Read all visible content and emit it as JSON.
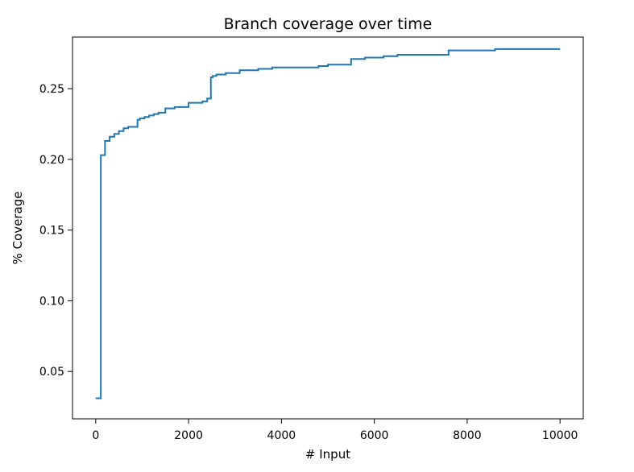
{
  "chart_data": {
    "type": "line",
    "step": true,
    "title": "Branch coverage over time",
    "xlabel": "# Input",
    "ylabel": "% Coverage",
    "xlim": [
      -500,
      10500
    ],
    "ylim": [
      0.0165,
      0.2865
    ],
    "xticks": [
      0,
      2000,
      4000,
      6000,
      8000,
      10000
    ],
    "yticks": [
      0.05,
      0.1,
      0.15,
      0.2,
      0.25
    ],
    "ytick_labels": [
      "0.05",
      "0.10",
      "0.15",
      "0.20",
      "0.25"
    ],
    "grid": false,
    "series": [
      {
        "color": "#1f77b4",
        "x": [
          0,
          100,
          110,
          200,
          300,
          400,
          500,
          600,
          700,
          900,
          950,
          1050,
          1150,
          1250,
          1350,
          1500,
          1700,
          2000,
          2300,
          2400,
          2480,
          2520,
          2600,
          2800,
          3100,
          3500,
          3800,
          4200,
          4800,
          5000,
          5500,
          5800,
          6200,
          6500,
          7000,
          7600,
          8600,
          9000,
          10000
        ],
        "y": [
          0.031,
          0.031,
          0.203,
          0.213,
          0.216,
          0.218,
          0.22,
          0.222,
          0.223,
          0.228,
          0.229,
          0.23,
          0.231,
          0.232,
          0.233,
          0.236,
          0.237,
          0.24,
          0.241,
          0.243,
          0.258,
          0.259,
          0.26,
          0.261,
          0.263,
          0.264,
          0.265,
          0.265,
          0.266,
          0.267,
          0.271,
          0.272,
          0.273,
          0.274,
          0.274,
          0.277,
          0.278,
          0.278,
          0.278
        ]
      }
    ]
  }
}
